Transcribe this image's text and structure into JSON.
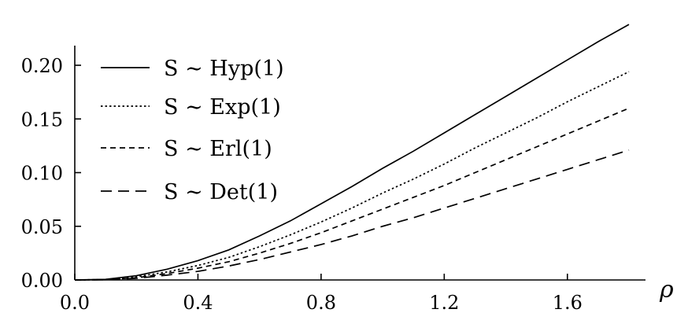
{
  "chart_data": {
    "type": "line",
    "title": "",
    "xlabel": "ρ",
    "ylabel": "",
    "xlim": [
      0.0,
      1.8
    ],
    "ylim": [
      0.0,
      0.2
    ],
    "x_ticks": [
      "0.0",
      "0.4",
      "0.8",
      "1.2",
      "1.6"
    ],
    "y_ticks": [
      "0.00",
      "0.05",
      "0.10",
      "0.15",
      "0.20"
    ],
    "grid": false,
    "legend_position": "top-left",
    "x": [
      0.0,
      0.1,
      0.2,
      0.3,
      0.4,
      0.5,
      0.6,
      0.7,
      0.8,
      0.9,
      1.0,
      1.1,
      1.2,
      1.3,
      1.4,
      1.5,
      1.6,
      1.7,
      1.8
    ],
    "series": [
      {
        "name": "S ∼ Hyp(1)",
        "dash": "solid",
        "values": [
          0.0,
          0.0006,
          0.004,
          0.01,
          0.018,
          0.028,
          0.041,
          0.055,
          0.071,
          0.087,
          0.104,
          0.12,
          0.137,
          0.154,
          0.171,
          0.188,
          0.205,
          0.222,
          0.238
        ]
      },
      {
        "name": "S ∼ Exp(1)",
        "dash": "dotted",
        "values": [
          0.0,
          0.0004,
          0.003,
          0.0075,
          0.0135,
          0.021,
          0.031,
          0.042,
          0.054,
          0.067,
          0.081,
          0.094,
          0.108,
          0.123,
          0.137,
          0.151,
          0.166,
          0.18,
          0.194
        ]
      },
      {
        "name": "S ∼ Erl(1)",
        "dash": "dashed",
        "values": [
          0.0,
          0.0003,
          0.002,
          0.006,
          0.011,
          0.017,
          0.025,
          0.034,
          0.044,
          0.055,
          0.066,
          0.077,
          0.088,
          0.1,
          0.112,
          0.124,
          0.136,
          0.148,
          0.16
        ]
      },
      {
        "name": "S ∼ Det(1)",
        "dash": "long-dashed",
        "values": [
          0.0,
          0.0002,
          0.0015,
          0.0045,
          0.008,
          0.013,
          0.019,
          0.026,
          0.033,
          0.041,
          0.05,
          0.058,
          0.067,
          0.076,
          0.085,
          0.094,
          0.103,
          0.112,
          0.121
        ]
      }
    ]
  }
}
